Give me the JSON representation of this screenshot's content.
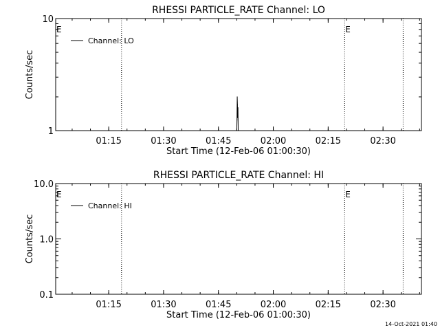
{
  "footer_timestamp": "14-Oct-2021 01:40",
  "chart_data": [
    {
      "type": "line",
      "title": "RHESSI PARTICLE_RATE Channel: LO",
      "xlabel": "Start Time (12-Feb-06 01:00:30)",
      "ylabel": "Counts/sec",
      "yscale": "log",
      "ylim": [
        1,
        10
      ],
      "ytick_values": [
        1,
        10
      ],
      "ytick_labels": [
        "1",
        "10"
      ],
      "xlim": [
        "01:00:30",
        "02:40:30"
      ],
      "xtick_values": [
        "01:15",
        "01:30",
        "01:45",
        "02:00",
        "02:15",
        "02:30"
      ],
      "xtick_labels": [
        "01:15",
        "01:30",
        "01:45",
        "02:00",
        "02:15",
        "02:30"
      ],
      "legend": {
        "entries": [
          "Channel: LO"
        ],
        "placement": "top-left"
      },
      "markers": [
        {
          "time": "01:00:30",
          "label": "E"
        },
        {
          "time": "01:18:30",
          "label": ""
        },
        {
          "time": "02:19:30",
          "label": "E"
        },
        {
          "time": "02:35:30",
          "label": ""
        }
      ],
      "grid": false,
      "series": [
        {
          "name": "Channel: LO",
          "x": [
            "01:50:00",
            "01:50:04",
            "01:50:08",
            "01:50:12",
            "01:50:16",
            "01:50:20",
            "01:50:24"
          ],
          "y": [
            1,
            1.25,
            2,
            1.7,
            1.3,
            1.6,
            1
          ]
        }
      ]
    },
    {
      "type": "line",
      "title": "RHESSI PARTICLE_RATE Channel: HI",
      "xlabel": "Start Time (12-Feb-06 01:00:30)",
      "ylabel": "Counts/sec",
      "yscale": "log",
      "ylim": [
        0.1,
        10
      ],
      "ytick_values": [
        0.1,
        1,
        10
      ],
      "ytick_labels": [
        "0.1",
        "1.0",
        "10.0"
      ],
      "xlim": [
        "01:00:30",
        "02:40:30"
      ],
      "xtick_values": [
        "01:15",
        "01:30",
        "01:45",
        "02:00",
        "02:15",
        "02:30"
      ],
      "xtick_labels": [
        "01:15",
        "01:30",
        "01:45",
        "02:00",
        "02:15",
        "02:30"
      ],
      "legend": {
        "entries": [
          "Channel: HI"
        ],
        "placement": "top-left"
      },
      "markers": [
        {
          "time": "01:00:30",
          "label": "E"
        },
        {
          "time": "01:18:30",
          "label": ""
        },
        {
          "time": "02:19:30",
          "label": "E"
        },
        {
          "time": "02:35:30",
          "label": ""
        }
      ],
      "grid": false,
      "series": [
        {
          "name": "Channel: HI",
          "x": [],
          "y": []
        }
      ]
    }
  ]
}
